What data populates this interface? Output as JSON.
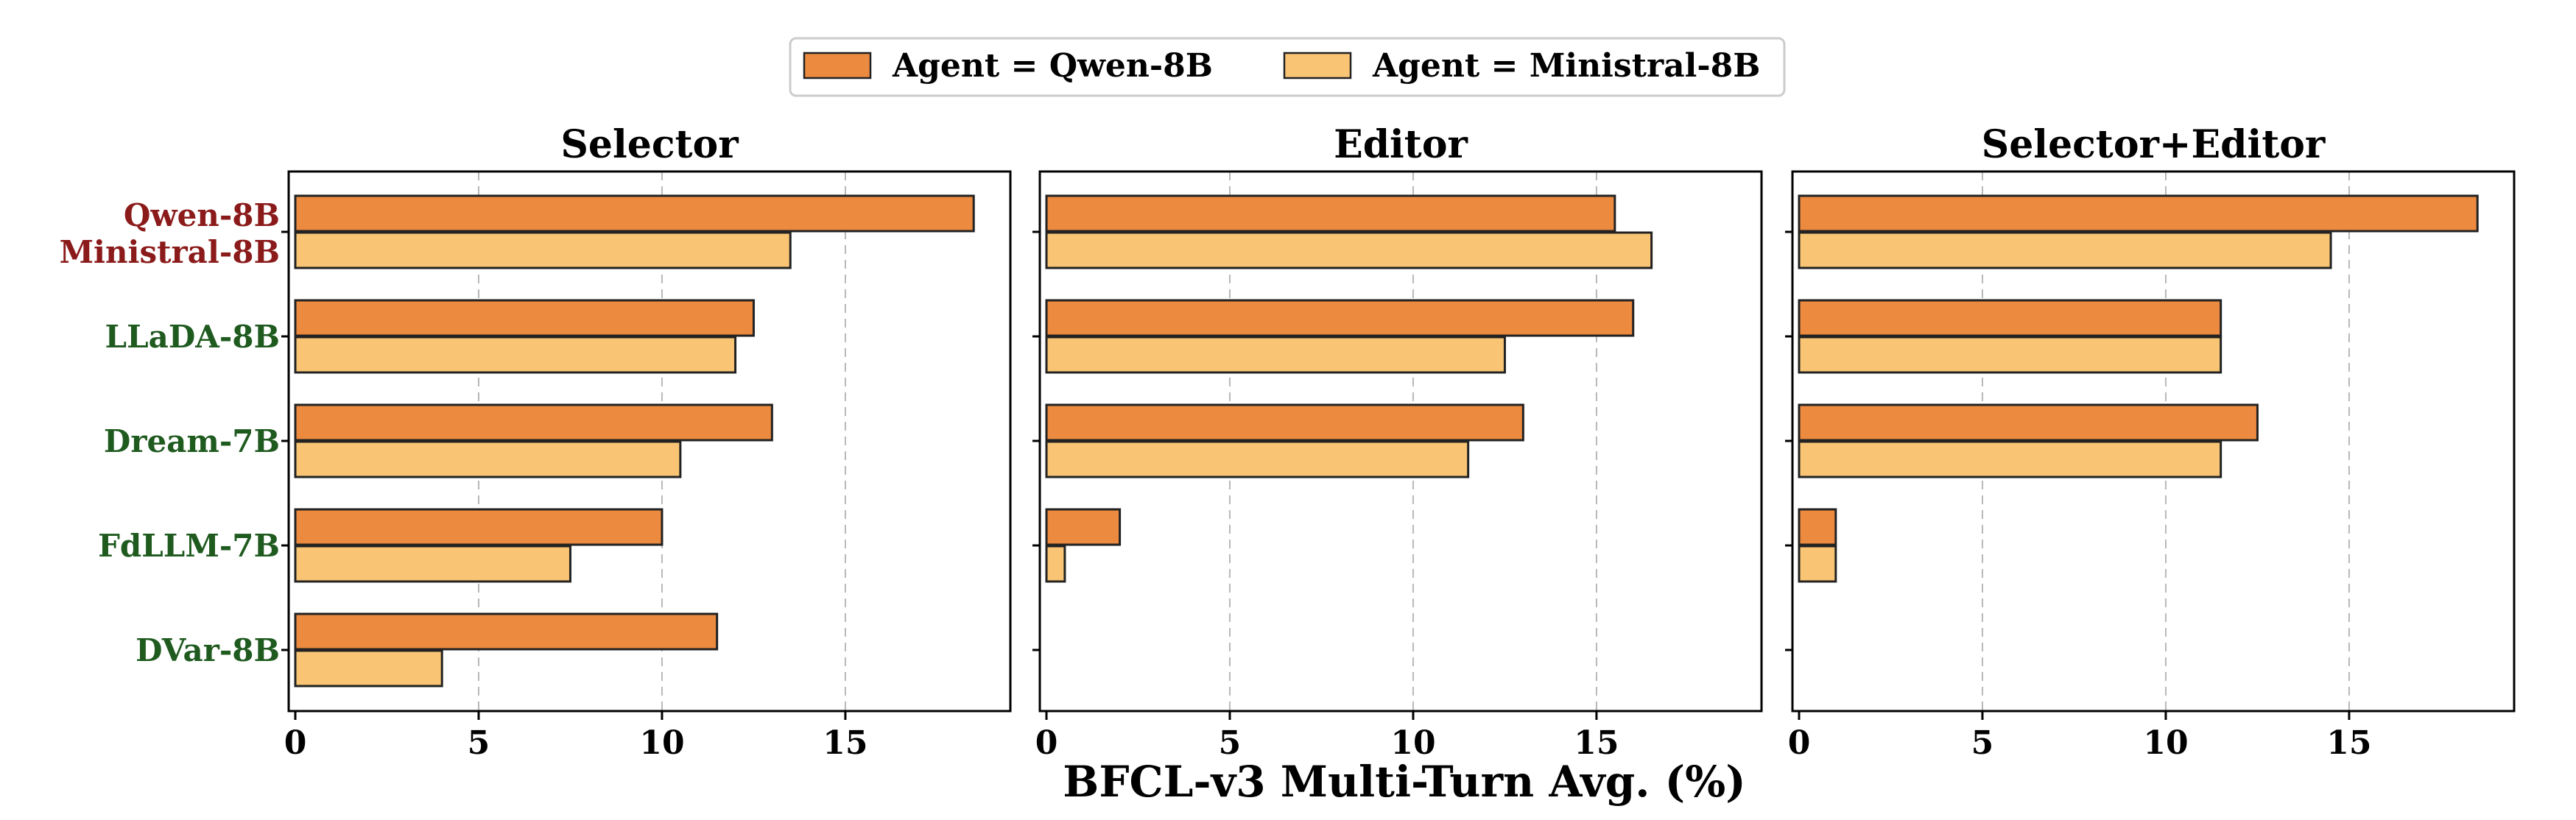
{
  "chart_data": {
    "type": "bar",
    "orientation": "horizontal",
    "xlabel": "BFCL-v3 Multi-Turn Avg. (%)",
    "xlim": [
      0,
      19.5
    ],
    "xticks": [
      0,
      5,
      10,
      15
    ],
    "grid": true,
    "legend_position": "top-center",
    "categories": [
      {
        "label": "Qwen-8B",
        "label2": "Ministral-8B",
        "color": "#8b1a1a"
      },
      {
        "label": "LLaDA-8B",
        "label2": "",
        "color": "#1f5a1f"
      },
      {
        "label": "Dream-7B",
        "label2": "",
        "color": "#1f5a1f"
      },
      {
        "label": "FdLLM-7B",
        "label2": "",
        "color": "#1f5a1f"
      },
      {
        "label": "DVar-8B",
        "label2": "",
        "color": "#1f5a1f"
      }
    ],
    "series": [
      {
        "name": "Agent = Qwen-8B",
        "color": "#ec8a40"
      },
      {
        "name": "Agent = Ministral-8B",
        "color": "#f9c574"
      }
    ],
    "panels": [
      {
        "title": "Selector",
        "values": [
          [
            18.5,
            13.5
          ],
          [
            12.5,
            12.0
          ],
          [
            13.0,
            10.5
          ],
          [
            10.0,
            7.5
          ],
          [
            11.5,
            4.0
          ]
        ]
      },
      {
        "title": "Editor",
        "values": [
          [
            15.5,
            16.5
          ],
          [
            16.0,
            12.5
          ],
          [
            13.0,
            11.5
          ],
          [
            2.0,
            0.5
          ],
          [
            0.0,
            0.0
          ]
        ]
      },
      {
        "title": "Selector+Editor",
        "values": [
          [
            18.5,
            14.5
          ],
          [
            11.5,
            11.5
          ],
          [
            12.5,
            11.5
          ],
          [
            1.0,
            1.0
          ],
          [
            0.0,
            0.0
          ]
        ]
      }
    ]
  }
}
